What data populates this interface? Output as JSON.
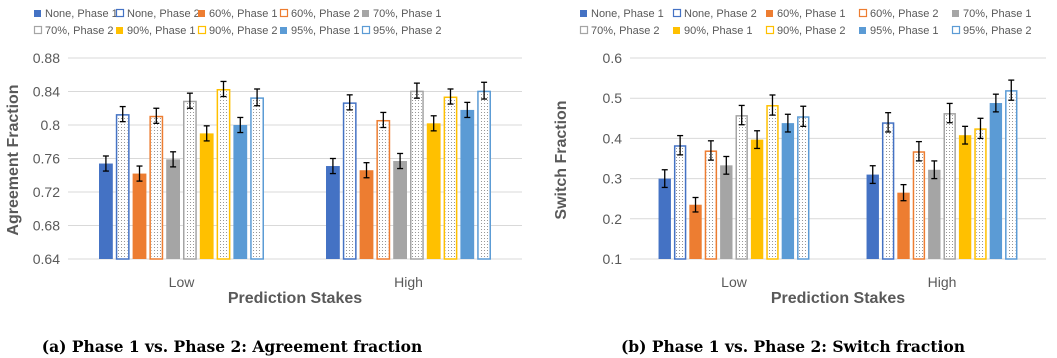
{
  "chart_data": [
    {
      "type": "bar",
      "categories": [
        "Low",
        "High"
      ],
      "xlabel": "Prediction Stakes",
      "ylabel": "Agreement Fraction",
      "ylim": [
        0.64,
        0.88
      ],
      "yticks": [
        "0.64",
        "0.68",
        "0.72",
        "0.76",
        "0.8",
        "0.84",
        "0.88"
      ],
      "grid": true,
      "legend_position": "top",
      "caption": "(a) Phase 1 vs. Phase 2: Agreement fraction",
      "series": [
        {
          "name": "None, Phase 1",
          "values": [
            0.754,
            0.751
          ],
          "errors": [
            0.009,
            0.009
          ],
          "color": "#4472C4",
          "style": "solid"
        },
        {
          "name": "None, Phase 2",
          "values": [
            0.813,
            0.827
          ],
          "errors": [
            0.009,
            0.009
          ],
          "color": "#4472C4",
          "style": "dotted"
        },
        {
          "name": "60%, Phase 1",
          "values": [
            0.742,
            0.746
          ],
          "errors": [
            0.009,
            0.009
          ],
          "color": "#ED7D31",
          "style": "solid"
        },
        {
          "name": "60%, Phase 2",
          "values": [
            0.811,
            0.806
          ],
          "errors": [
            0.009,
            0.009
          ],
          "color": "#ED7D31",
          "style": "dotted"
        },
        {
          "name": "70%, Phase 1",
          "values": [
            0.759,
            0.757
          ],
          "errors": [
            0.009,
            0.009
          ],
          "color": "#A5A5A5",
          "style": "solid"
        },
        {
          "name": "70%, Phase 2",
          "values": [
            0.829,
            0.841
          ],
          "errors": [
            0.009,
            0.009
          ],
          "color": "#A5A5A5",
          "style": "dotted"
        },
        {
          "name": "90%, Phase 1",
          "values": [
            0.79,
            0.802
          ],
          "errors": [
            0.009,
            0.009
          ],
          "color": "#FFC000",
          "style": "solid"
        },
        {
          "name": "90%, Phase 2",
          "values": [
            0.843,
            0.834
          ],
          "errors": [
            0.009,
            0.009
          ],
          "color": "#FFC000",
          "style": "dotted"
        },
        {
          "name": "95%, Phase 1",
          "values": [
            0.8,
            0.818
          ],
          "errors": [
            0.009,
            0.009
          ],
          "color": "#5B9BD5",
          "style": "solid"
        },
        {
          "name": "95%, Phase 2",
          "values": [
            0.833,
            0.841
          ],
          "errors": [
            0.01,
            0.01
          ],
          "color": "#5B9BD5",
          "style": "dotted"
        }
      ]
    },
    {
      "type": "bar",
      "categories": [
        "Low",
        "High"
      ],
      "xlabel": "Prediction Stakes",
      "ylabel": "Switch Fraction",
      "ylim": [
        0.1,
        0.6
      ],
      "yticks": [
        "0.1",
        "0.2",
        "0.3",
        "0.4",
        "0.5",
        "0.6"
      ],
      "grid": true,
      "legend_position": "top",
      "caption": "(b) Phase 1 vs. Phase 2: Switch fraction",
      "series": [
        {
          "name": "None, Phase 1",
          "values": [
            0.3,
            0.31
          ],
          "errors": [
            0.022,
            0.022
          ],
          "color": "#4472C4",
          "style": "solid"
        },
        {
          "name": "None, Phase 2",
          "values": [
            0.383,
            0.44
          ],
          "errors": [
            0.024,
            0.024
          ],
          "color": "#4472C4",
          "style": "dotted"
        },
        {
          "name": "60%, Phase 1",
          "values": [
            0.235,
            0.265
          ],
          "errors": [
            0.018,
            0.02
          ],
          "color": "#ED7D31",
          "style": "solid"
        },
        {
          "name": "60%, Phase 2",
          "values": [
            0.37,
            0.368
          ],
          "errors": [
            0.024,
            0.024
          ],
          "color": "#ED7D31",
          "style": "dotted"
        },
        {
          "name": "70%, Phase 1",
          "values": [
            0.333,
            0.322
          ],
          "errors": [
            0.022,
            0.022
          ],
          "color": "#A5A5A5",
          "style": "solid"
        },
        {
          "name": "70%, Phase 2",
          "values": [
            0.458,
            0.463
          ],
          "errors": [
            0.024,
            0.024
          ],
          "color": "#A5A5A5",
          "style": "dotted"
        },
        {
          "name": "90%, Phase 1",
          "values": [
            0.397,
            0.408
          ],
          "errors": [
            0.022,
            0.022
          ],
          "color": "#FFC000",
          "style": "solid"
        },
        {
          "name": "90%, Phase 2",
          "values": [
            0.483,
            0.425
          ],
          "errors": [
            0.025,
            0.025
          ],
          "color": "#FFC000",
          "style": "dotted"
        },
        {
          "name": "95%, Phase 1",
          "values": [
            0.438,
            0.488
          ],
          "errors": [
            0.022,
            0.022
          ],
          "color": "#5B9BD5",
          "style": "solid"
        },
        {
          "name": "95%, Phase 2",
          "values": [
            0.455,
            0.52
          ],
          "errors": [
            0.025,
            0.025
          ],
          "color": "#5B9BD5",
          "style": "dotted"
        }
      ]
    }
  ]
}
